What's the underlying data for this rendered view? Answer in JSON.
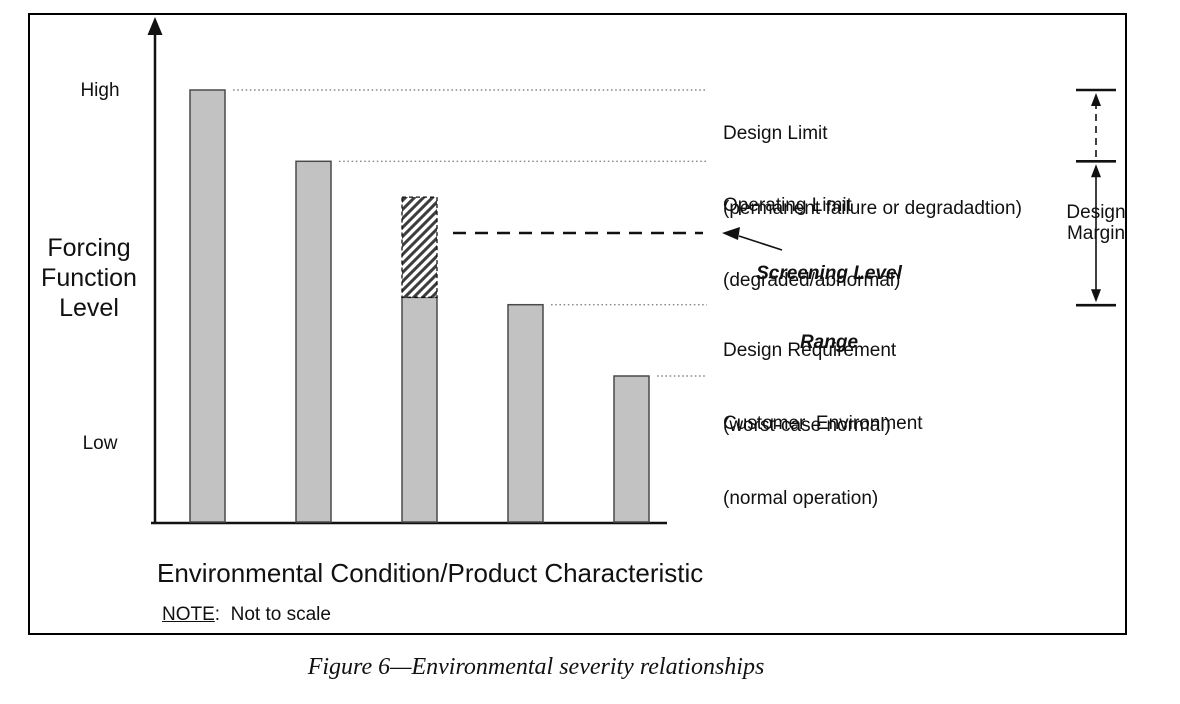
{
  "caption": "Figure 6—Environmental severity relationships",
  "note": {
    "label": "NOTE",
    "text": ":  Not to scale"
  },
  "axes": {
    "y_axis_label": "Forcing Function Level",
    "y_tick_high": "High",
    "y_tick_low": "Low",
    "x_axis_label": "Environmental Condition/Product Characteristic"
  },
  "annotations": {
    "design_limit": {
      "title": "Design Limit",
      "subtitle": "(permanent failure or degradadtion)"
    },
    "operating_limit": {
      "title": "Operating Limit",
      "subtitle": "(degraded/abnormal)"
    },
    "screening_level": {
      "title": "Screening Level",
      "subtitle": "Range"
    },
    "design_requirement": {
      "title": "Design Requirement",
      "subtitle": "(worst-case normal)"
    },
    "customer_environment": {
      "title": "Customer  Environment",
      "subtitle": "(normal operation)"
    },
    "design_margin": "Design Margin"
  },
  "colors": {
    "bar_fill": "#c2c2c2",
    "bar_border": "#4a4a4a",
    "ink": "#111111",
    "leader_dotted": "#8a8a8a",
    "hatch_stroke": "#3d3d3d"
  },
  "chart_data": {
    "type": "bar",
    "title": "Figure 6—Environmental severity relationships",
    "xlabel": "Environmental Condition/Product Characteristic",
    "ylabel": "Forcing Function Level",
    "yticks": [
      "High",
      "Low"
    ],
    "scale_note": "Not to scale (qualitative figure; values are fractions of the tallest bar)",
    "categories": [
      "Design Limit (permanent failure or degradadtion)",
      "Operating Limit (degraded/abnormal)",
      "Screening Level Range (hatched upper segment)",
      "Design Requirement (worst-case normal)",
      "Customer Environment (normal operation)"
    ],
    "values": [
      1.0,
      0.835,
      0.52,
      0.503,
      0.338
    ],
    "ylim": [
      0,
      1.05
    ],
    "grid": false,
    "legend": false,
    "screening_segment": {
      "bar_index": 2,
      "from": 0.52,
      "to": 0.752,
      "style": "diagonal hatch with dashed outline"
    },
    "screening_level_line": {
      "level": 0.669,
      "style": "bold dashed horizontal line with arrow from label"
    },
    "design_margin": {
      "top": 1.0,
      "mid": 0.835,
      "bottom": 0.503,
      "solid_span": "operating limit to design requirement",
      "dashed_span": "design limit to operating limit"
    }
  }
}
